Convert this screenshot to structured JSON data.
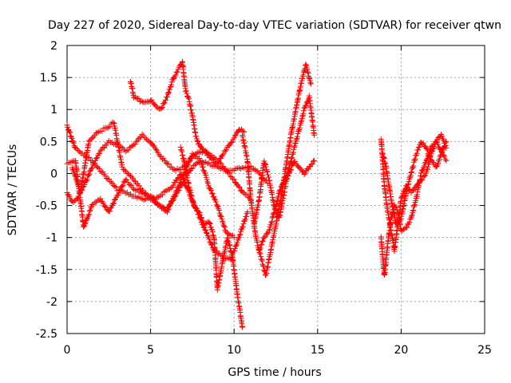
{
  "chart_data": {
    "type": "scatter",
    "title": "Day 227 of 2020, Sidereal Day-to-day VTEC variation (SDTVAR) for receiver qtwn",
    "xlabel": "GPS time / hours",
    "ylabel": "SDTVAR / TECUs",
    "xlim": [
      0,
      25
    ],
    "ylim": [
      -2.5,
      2
    ],
    "xticks": [
      0,
      5,
      10,
      15,
      20,
      25
    ],
    "yticks": [
      -2.5,
      -2,
      -1.5,
      -1,
      -0.5,
      0,
      0.5,
      1,
      1.5,
      2
    ],
    "xtick_labels": [
      "0",
      "5",
      "10",
      "15",
      "20",
      "25"
    ],
    "ytick_labels": [
      "-2.5",
      "-2",
      "-1.5",
      "-1",
      "-0.5",
      "0",
      "0.5",
      "1",
      "1.5",
      "2"
    ],
    "grid": true,
    "marker": "+",
    "color": "#ff0000",
    "series": [
      {
        "x": [
          0.0,
          0.3,
          0.6,
          1.0,
          1.5,
          2.0,
          2.5,
          3.0,
          3.5,
          4.0,
          4.5,
          5.0,
          5.5,
          6.0,
          6.5,
          7.0,
          7.5,
          8.0,
          8.5,
          9.0,
          9.5,
          10.0,
          10.5,
          11.0
        ],
        "y": [
          -0.3,
          -0.45,
          -0.4,
          -0.2,
          0.1,
          0.35,
          0.5,
          0.45,
          0.35,
          0.45,
          0.6,
          0.5,
          0.3,
          0.15,
          0.05,
          0.1,
          0.25,
          0.35,
          0.3,
          0.2,
          0.05,
          -0.1,
          -0.3,
          -0.4
        ]
      },
      {
        "x": [
          0.0,
          0.5,
          1.0,
          1.5,
          2.0,
          2.5,
          3.0,
          3.5,
          4.0,
          4.5,
          5.0,
          5.5,
          6.0,
          6.5,
          7.0,
          7.5,
          8.0,
          8.5,
          9.0,
          9.5,
          10.0,
          10.5,
          11.0,
          11.5,
          12.0
        ],
        "y": [
          0.75,
          0.4,
          0.3,
          0.2,
          0.05,
          -0.1,
          -0.25,
          -0.3,
          -0.35,
          -0.4,
          -0.4,
          -0.5,
          -0.55,
          -0.35,
          -0.1,
          0.1,
          0.2,
          0.15,
          0.1,
          0.05,
          0.05,
          0.1,
          0.1,
          0.0,
          -0.15
        ]
      },
      {
        "x": [
          0.0,
          0.5,
          1.0,
          1.5,
          2.0,
          2.5,
          3.0,
          3.5,
          4.0,
          4.5,
          5.0,
          5.5,
          6.0,
          6.5,
          7.0,
          7.5,
          8.0,
          8.5,
          9.0,
          9.5,
          10.0
        ],
        "y": [
          0.15,
          0.2,
          -0.85,
          -0.5,
          -0.4,
          -0.6,
          -0.35,
          -0.1,
          -0.25,
          -0.3,
          -0.35,
          -0.5,
          -0.6,
          -0.3,
          0.0,
          0.3,
          0.2,
          -0.2,
          -0.5,
          -0.9,
          -1.0
        ]
      },
      {
        "x": [
          0.3,
          0.8,
          1.3,
          1.8,
          2.3,
          2.8,
          3.3,
          3.8,
          4.3,
          4.8,
          5.3,
          5.8,
          6.3,
          6.8,
          7.3,
          7.8,
          8.3,
          8.8,
          9.3,
          9.8,
          10.3,
          10.8
        ],
        "y": [
          0.1,
          -0.3,
          0.5,
          0.65,
          0.7,
          0.8,
          0.1,
          -0.05,
          -0.2,
          -0.35,
          -0.4,
          -0.3,
          -0.2,
          0.0,
          -0.3,
          -0.6,
          -0.9,
          -1.2,
          -1.3,
          -1.35,
          -1.0,
          -0.6
        ]
      },
      {
        "x": [
          3.8,
          4.0,
          4.3,
          4.6,
          5.0,
          5.3,
          5.6,
          6.0,
          6.3,
          6.6,
          6.9,
          7.1,
          7.3,
          7.5,
          7.7,
          7.9,
          8.1,
          8.4,
          8.7,
          9.0,
          9.3,
          9.6,
          10.0,
          10.3,
          10.6
        ],
        "y": [
          1.45,
          1.2,
          1.15,
          1.1,
          1.15,
          1.05,
          1.0,
          1.2,
          1.45,
          1.6,
          1.75,
          1.3,
          1.15,
          0.9,
          0.6,
          0.45,
          0.4,
          0.3,
          0.2,
          0.15,
          0.3,
          0.4,
          0.55,
          0.7,
          0.65
        ]
      },
      {
        "x": [
          6.8,
          7.0,
          7.3,
          7.6,
          7.9,
          8.2,
          8.5,
          8.8,
          9.0,
          9.3,
          9.6,
          9.9,
          10.2,
          10.5
        ],
        "y": [
          0.4,
          0.2,
          -0.2,
          -0.5,
          -0.6,
          -0.8,
          -0.75,
          -1.0,
          -1.8,
          -1.4,
          -1.0,
          -1.3,
          -1.9,
          -2.4
        ]
      },
      {
        "x": [
          10.5,
          10.8,
          11.0,
          11.3,
          11.6,
          11.9,
          12.2,
          12.5,
          12.8,
          13.1,
          13.4,
          13.7,
          14.0,
          14.3,
          14.6
        ],
        "y": [
          0.6,
          0.2,
          -0.4,
          -1.0,
          -1.3,
          -1.6,
          -1.2,
          -0.8,
          -0.4,
          0.1,
          0.6,
          1.0,
          1.4,
          1.7,
          1.4
        ]
      },
      {
        "x": [
          11.2,
          11.5,
          11.8,
          12.1,
          12.4,
          12.7,
          13.0,
          13.3,
          13.6,
          13.9,
          14.2,
          14.5,
          14.8
        ],
        "y": [
          -0.8,
          -0.4,
          0.2,
          -0.1,
          -0.5,
          -0.7,
          -0.3,
          0.1,
          0.4,
          0.7,
          1.0,
          1.2,
          0.6
        ]
      },
      {
        "x": [
          11.5,
          11.8,
          12.1,
          12.4,
          12.7,
          13.0,
          13.3,
          13.6,
          13.9,
          14.2,
          14.5,
          14.8
        ],
        "y": [
          -1.2,
          -1.0,
          -0.9,
          -0.6,
          -0.3,
          -0.1,
          0.0,
          0.2,
          0.1,
          0.0,
          0.1,
          0.2
        ]
      },
      {
        "x": [
          18.8,
          19.0,
          19.2,
          19.4,
          19.6,
          19.8,
          20.0,
          20.3,
          20.6,
          20.9,
          21.2,
          21.5,
          21.8,
          22.1,
          22.4,
          22.7
        ],
        "y": [
          0.55,
          -0.2,
          -0.6,
          -0.9,
          -1.2,
          -0.8,
          -0.4,
          -0.2,
          -0.3,
          -0.2,
          -0.1,
          0.0,
          0.3,
          0.5,
          0.6,
          0.4
        ]
      },
      {
        "x": [
          18.8,
          19.0,
          19.2,
          19.4,
          19.6,
          19.8,
          20.0,
          20.3,
          20.6,
          20.9,
          21.2,
          21.5,
          21.8,
          22.1,
          22.4,
          22.7
        ],
        "y": [
          -1.0,
          -1.6,
          -1.1,
          -0.7,
          -0.5,
          -0.6,
          -0.9,
          -0.85,
          -0.7,
          -0.4,
          0.0,
          0.2,
          0.4,
          0.5,
          0.35,
          0.2
        ]
      },
      {
        "x": [
          18.9,
          19.1,
          19.4,
          19.7,
          20.0,
          20.3,
          20.6,
          20.9,
          21.2,
          21.5,
          21.8,
          22.1,
          22.4,
          22.7
        ],
        "y": [
          0.3,
          0.1,
          -0.4,
          -0.8,
          -0.7,
          -0.3,
          0.0,
          0.3,
          0.5,
          0.4,
          0.2,
          0.1,
          0.3,
          0.5
        ]
      }
    ]
  }
}
